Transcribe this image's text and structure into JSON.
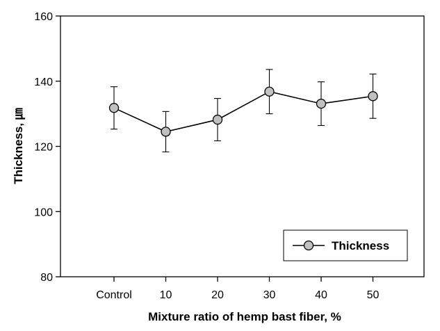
{
  "chart_data": {
    "type": "line",
    "title": "",
    "xlabel": "Mixture ratio of hemp bast fiber, %",
    "ylabel": "Thickness, ㎛",
    "ylim": [
      80,
      160
    ],
    "yticks": [
      80,
      100,
      120,
      140,
      160
    ],
    "categories": [
      "Control",
      "10",
      "20",
      "30",
      "40",
      "50"
    ],
    "series": [
      {
        "name": "Thickness",
        "values": [
          131.8,
          124.5,
          128.2,
          136.8,
          133.1,
          135.4
        ],
        "error": [
          6.5,
          6.2,
          6.5,
          6.8,
          6.7,
          6.8
        ],
        "marker": "circle",
        "marker_color": "#c0c0c0",
        "line_color": "#000000"
      }
    ],
    "legend": {
      "label": "Thickness",
      "position": "bottom-right"
    },
    "grid": false
  }
}
